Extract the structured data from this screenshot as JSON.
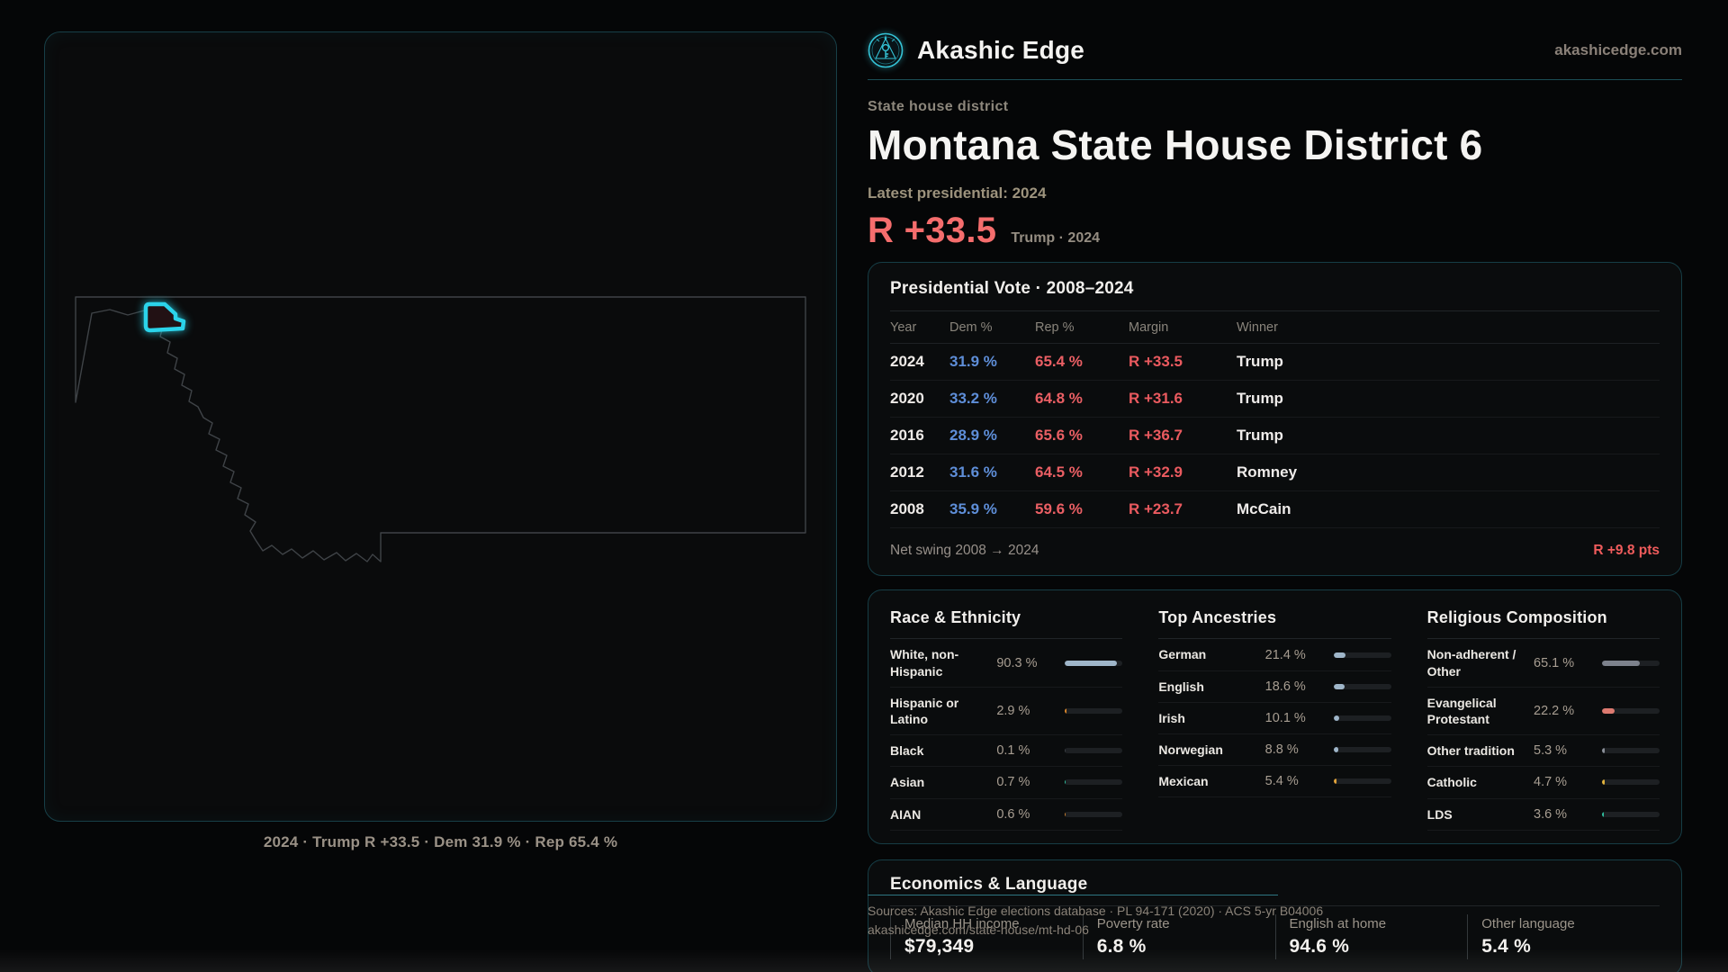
{
  "brand": {
    "name": "Akashic Edge",
    "domain": "akashicedge.com",
    "accent_teal": "#35c3d6",
    "rep_red": "#ea5f64",
    "dem_blue": "#5e8ed8"
  },
  "page": {
    "eyebrow": "State house district",
    "title": "Montana State House District 6",
    "latest_label": "Latest presidential: 2024",
    "margin_value": "R +33.5",
    "margin_caption": "Trump · 2024"
  },
  "map": {
    "caption": "2024 · Trump R +33.5 · Dem 31.9 % · Rep 65.4 %",
    "district_color": "#2bd3ea",
    "outline_color": "#3f4347"
  },
  "presidential": {
    "title": "Presidential Vote · 2008–2024",
    "columns": [
      "Year",
      "Dem %",
      "Rep %",
      "Margin",
      "Winner"
    ],
    "rows": [
      {
        "year": "2024",
        "dem": "31.9 %",
        "rep": "65.4 %",
        "margin": "R +33.5",
        "winner": "Trump"
      },
      {
        "year": "2020",
        "dem": "33.2 %",
        "rep": "64.8 %",
        "margin": "R +31.6",
        "winner": "Trump"
      },
      {
        "year": "2016",
        "dem": "28.9 %",
        "rep": "65.6 %",
        "margin": "R +36.7",
        "winner": "Trump"
      },
      {
        "year": "2012",
        "dem": "31.6 %",
        "rep": "64.5 %",
        "margin": "R +32.9",
        "winner": "Romney"
      },
      {
        "year": "2008",
        "dem": "35.9 %",
        "rep": "59.6 %",
        "margin": "R +23.7",
        "winner": "McCain"
      }
    ],
    "net_swing_label": "Net swing 2008 → 2024",
    "net_swing_value": "R +9.8 pts"
  },
  "demographics": {
    "race": {
      "title": "Race & Ethnicity",
      "rows": [
        {
          "label": "White, non-Hispanic",
          "value": "90.3 %",
          "pct": 90.3,
          "color": "#9fb6c9"
        },
        {
          "label": "Hispanic or Latino",
          "value": "2.9 %",
          "pct": 2.9,
          "color": "#d9862b"
        },
        {
          "label": "Black",
          "value": "0.1 %",
          "pct": 0.1,
          "color": "#3a3f44"
        },
        {
          "label": "Asian",
          "value": "0.7 %",
          "pct": 0.7,
          "color": "#2fbf9f"
        },
        {
          "label": "AIAN",
          "value": "0.6 %",
          "pct": 0.6,
          "color": "#c97f2d"
        }
      ]
    },
    "ancestries": {
      "title": "Top Ancestries",
      "rows": [
        {
          "label": "German",
          "value": "21.4 %",
          "pct": 21.4,
          "color": "#9fb6c9"
        },
        {
          "label": "English",
          "value": "18.6 %",
          "pct": 18.6,
          "color": "#9fb6c9"
        },
        {
          "label": "Irish",
          "value": "10.1 %",
          "pct": 10.1,
          "color": "#9fb6c9"
        },
        {
          "label": "Norwegian",
          "value": "8.8 %",
          "pct": 8.8,
          "color": "#9fb6c9"
        },
        {
          "label": "Mexican",
          "value": "5.4 %",
          "pct": 5.4,
          "color": "#e0a23a"
        }
      ]
    },
    "religion": {
      "title": "Religious Composition",
      "rows": [
        {
          "label": "Non-adherent / Other",
          "value": "65.1 %",
          "pct": 65.1,
          "color": "#7d828c"
        },
        {
          "label": "Evangelical Protestant",
          "value": "22.2 %",
          "pct": 22.2,
          "color": "#dd7a70"
        },
        {
          "label": "Other tradition",
          "value": "5.3 %",
          "pct": 5.3,
          "color": "#8a8f98"
        },
        {
          "label": "Catholic",
          "value": "4.7 %",
          "pct": 4.7,
          "color": "#e0b13c"
        },
        {
          "label": "LDS",
          "value": "3.6 %",
          "pct": 3.6,
          "color": "#2fbf9f"
        }
      ]
    }
  },
  "economics": {
    "title": "Economics & Language",
    "stats": [
      {
        "label": "Median HH income",
        "value": "$79,349"
      },
      {
        "label": "Poverty rate",
        "value": "6.8 %"
      },
      {
        "label": "English at home",
        "value": "94.6 %"
      },
      {
        "label": "Other language",
        "value": "5.4 %"
      }
    ]
  },
  "footer": {
    "line1": "Sources: Akashic Edge elections database · PL 94-171 (2020) · ACS 5-yr B04006",
    "line2": "akashicedge.com/state-house/mt-hd-06"
  }
}
